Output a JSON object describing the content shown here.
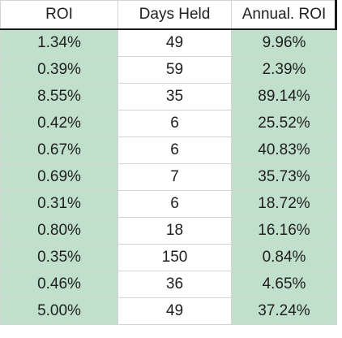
{
  "headers": [
    "ROI",
    "Days Held",
    "Annual. ROI"
  ],
  "rows": [
    [
      "1.34%",
      "49",
      "9.96%"
    ],
    [
      "0.39%",
      "59",
      "2.39%"
    ],
    [
      "8.55%",
      "35",
      "89.14%"
    ],
    [
      "0.42%",
      "6",
      "25.52%"
    ],
    [
      "0.67%",
      "6",
      "40.83%"
    ],
    [
      "0.69%",
      "7",
      "35.73%"
    ],
    [
      "0.31%",
      "6",
      "18.72%"
    ],
    [
      "0.80%",
      "18",
      "16.16%"
    ],
    [
      "0.35%",
      "150",
      "0.84%"
    ],
    [
      "0.46%",
      "36",
      "4.65%"
    ],
    [
      "5.00%",
      "49",
      "37.24%"
    ]
  ],
  "colors": {
    "highlight_fill": "#c1e0cc",
    "grid_line": "#d4d4d4",
    "header_border": "#1a1a1a",
    "text": "#202020"
  }
}
